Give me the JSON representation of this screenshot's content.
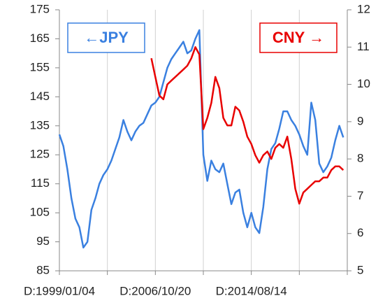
{
  "chart_data": {
    "type": "line",
    "categories": [
      "D:1999/01/04",
      null,
      null,
      null,
      null,
      null,
      null,
      null,
      null,
      null,
      null,
      null,
      null,
      null,
      null,
      null,
      null,
      null,
      null,
      null,
      null,
      null,
      null,
      null,
      "D:2006/10/20",
      null,
      null,
      null,
      null,
      null,
      null,
      null,
      null,
      null,
      null,
      null,
      null,
      null,
      null,
      null,
      null,
      null,
      null,
      null,
      null,
      null,
      null,
      null,
      "D:2014/08/14",
      null,
      null,
      null,
      null,
      null,
      null,
      null,
      null,
      null,
      null,
      null,
      null,
      null,
      null,
      null,
      null,
      null,
      null,
      null,
      null,
      null,
      null,
      null,
      null
    ],
    "series": [
      {
        "name": "←JPY",
        "color": "#3a80e0",
        "axis": "y",
        "values": [
          132,
          128,
          120,
          110,
          103,
          100,
          93,
          95,
          106,
          110,
          115,
          118,
          120,
          123,
          127,
          131,
          137,
          133,
          130,
          133,
          135,
          136,
          139,
          142,
          143,
          145,
          150,
          155,
          158,
          160,
          162,
          164,
          160,
          161,
          165,
          168,
          125,
          116,
          123,
          120,
          119,
          122,
          115,
          108,
          112,
          113,
          105,
          100,
          105,
          100,
          98,
          107,
          120,
          127,
          129,
          134,
          140,
          140,
          137,
          135,
          132,
          128,
          125,
          143,
          137,
          122,
          119,
          121,
          124,
          130,
          135,
          131,
          null
        ]
      },
      {
        "name": "CNY →",
        "color": "#e80000",
        "axis": "y2",
        "values": [
          null,
          null,
          null,
          null,
          null,
          null,
          null,
          null,
          null,
          null,
          null,
          null,
          null,
          null,
          null,
          null,
          null,
          null,
          null,
          null,
          null,
          null,
          null,
          10.7,
          10.2,
          9.7,
          9.6,
          10.0,
          10.1,
          10.2,
          10.3,
          10.4,
          10.5,
          10.7,
          11.0,
          10.8,
          8.8,
          9.1,
          9.5,
          10.2,
          9.9,
          9.1,
          8.9,
          8.9,
          9.4,
          9.3,
          9.0,
          8.6,
          8.4,
          8.1,
          7.9,
          8.1,
          8.2,
          8.0,
          8.3,
          8.4,
          8.3,
          8.6,
          8.0,
          7.2,
          6.8,
          7.1,
          7.2,
          7.3,
          7.4,
          7.4,
          7.5,
          7.5,
          7.7,
          7.8,
          7.8,
          7.7,
          null
        ]
      }
    ],
    "ylim": [
      85,
      175
    ],
    "yticks": [
      85,
      95,
      105,
      115,
      125,
      135,
      145,
      155,
      165,
      175
    ],
    "y2lim": [
      5,
      12
    ],
    "y2ticks": [
      5,
      6,
      7,
      8,
      9,
      10,
      11,
      12
    ],
    "grid": "x"
  }
}
